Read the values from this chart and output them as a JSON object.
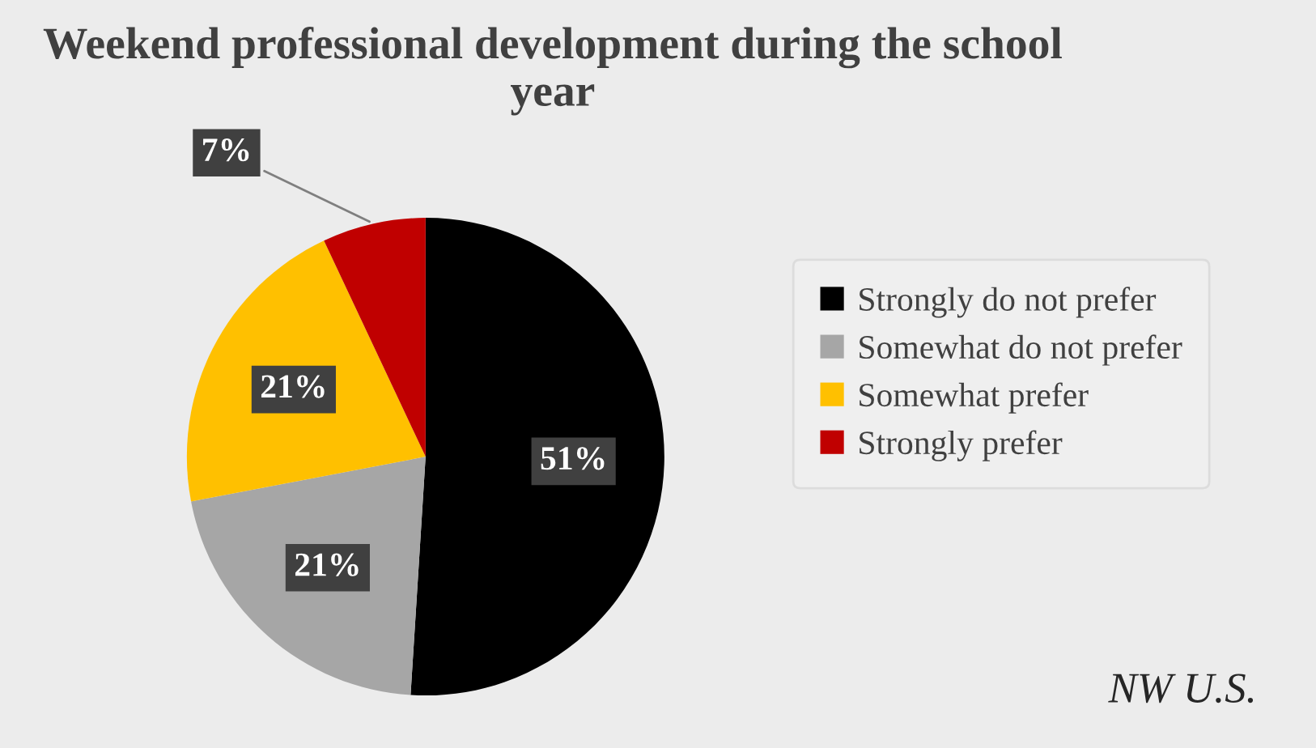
{
  "chart_data": {
    "type": "pie",
    "title": "Weekend professional development during the school year",
    "categories": [
      "Strongly do not prefer",
      "Somewhat do not prefer",
      "Somewhat prefer",
      "Strongly prefer"
    ],
    "values": [
      51,
      21,
      21,
      7
    ],
    "colors": [
      "#000000",
      "#a6a6a6",
      "#ffc000",
      "#c00000"
    ],
    "value_labels": [
      "51%",
      "21%",
      "21%",
      "7%"
    ],
    "legend": "right",
    "annotations": [
      "NW U.S."
    ]
  }
}
